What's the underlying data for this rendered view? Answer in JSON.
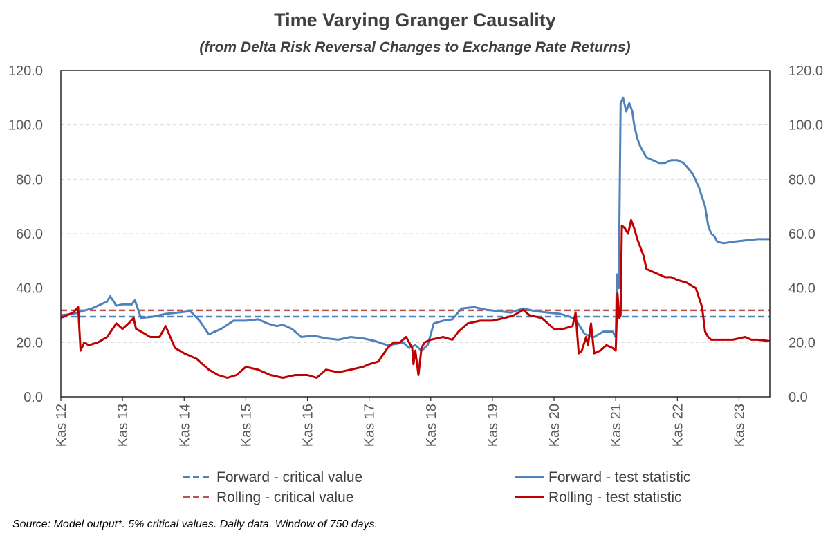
{
  "chart_data": {
    "type": "line",
    "title": "Time Varying Granger Causality",
    "subtitle": "(from Delta Risk Reversal Changes to Exchange Rate Returns)",
    "source_note": "Source: Model output*.  5% critical values. Daily data.  Window of 750 days.",
    "ylim": [
      0,
      120
    ],
    "y_ticks": [
      "0.0",
      "20.0",
      "40.0",
      "60.0",
      "80.0",
      "100.0",
      "120.0"
    ],
    "y_tick_values": [
      0,
      20,
      40,
      60,
      80,
      100,
      120
    ],
    "secondary_y_ticks": [
      "0.0",
      "20.0",
      "40.0",
      "60.0",
      "80.0",
      "100.0",
      "120.0"
    ],
    "x_range": [
      2012.0,
      2023.5
    ],
    "x_ticks": [
      "Kas 12",
      "Kas 13",
      "Kas 14",
      "Kas 15",
      "Kas 16",
      "Kas 17",
      "Kas 18",
      "Kas 19",
      "Kas 20",
      "Kas 21",
      "Kas 22",
      "Kas 23"
    ],
    "x_tick_values": [
      2012,
      2013,
      2014,
      2015,
      2016,
      2017,
      2018,
      2019,
      2020,
      2021,
      2022,
      2023
    ],
    "grid": "horizontal dashed",
    "legend_position": "bottom",
    "series": [
      {
        "name": "Forward - critical value",
        "color": "#4f81bd",
        "dash": true,
        "x": [
          2012.0,
          2023.5
        ],
        "y": [
          29.5,
          29.5
        ]
      },
      {
        "name": "Rolling - critical value",
        "color": "#c0504d",
        "dash": true,
        "x": [
          2012.0,
          2023.5
        ],
        "y": [
          31.8,
          31.8
        ]
      },
      {
        "name": "Forward - test statistic",
        "color": "#4f81bd",
        "dash": false,
        "x": [
          2012.0,
          2012.2,
          2012.35,
          2012.5,
          2012.65,
          2012.75,
          2012.8,
          2012.9,
          2013.0,
          2013.15,
          2013.2,
          2013.3,
          2013.5,
          2013.7,
          2013.9,
          2014.1,
          2014.25,
          2014.4,
          2014.6,
          2014.8,
          2015.0,
          2015.2,
          2015.35,
          2015.5,
          2015.6,
          2015.75,
          2015.9,
          2016.1,
          2016.3,
          2016.5,
          2016.7,
          2016.9,
          2017.1,
          2017.3,
          2017.45,
          2017.55,
          2017.65,
          2017.75,
          2017.85,
          2017.95,
          2018.05,
          2018.2,
          2018.35,
          2018.5,
          2018.7,
          2018.9,
          2019.1,
          2019.3,
          2019.5,
          2019.7,
          2019.9,
          2020.1,
          2020.25,
          2020.35,
          2020.5,
          2020.65,
          2020.8,
          2020.95,
          2021.0,
          2021.02,
          2021.05,
          2021.08,
          2021.12,
          2021.17,
          2021.22,
          2021.27,
          2021.3,
          2021.35,
          2021.4,
          2021.45,
          2021.5,
          2021.6,
          2021.7,
          2021.8,
          2021.9,
          2022.0,
          2022.1,
          2022.25,
          2022.35,
          2022.45,
          2022.5,
          2022.55,
          2022.6,
          2022.65,
          2022.75,
          2022.9,
          2023.1,
          2023.3,
          2023.5
        ],
        "y": [
          30,
          30.5,
          31.5,
          32.5,
          34,
          35,
          37,
          33.5,
          34,
          34,
          35.5,
          29,
          29.5,
          30.5,
          31,
          31.5,
          28,
          23,
          25,
          28,
          28,
          28.5,
          27,
          26,
          26.5,
          25,
          22,
          22.5,
          21.5,
          21,
          22,
          21.5,
          20.5,
          19,
          19.5,
          20,
          18,
          19,
          17,
          19,
          27,
          28,
          28.5,
          32.5,
          33,
          32,
          31.5,
          31,
          32.5,
          31.5,
          31,
          30.5,
          29.5,
          28.5,
          23,
          22,
          24,
          24,
          22,
          45,
          40,
          108,
          110,
          105,
          108,
          105,
          100,
          95,
          92,
          90,
          88,
          87,
          86,
          86,
          87,
          87,
          86,
          82,
          77,
          70,
          63,
          60,
          59,
          57,
          56.5,
          57,
          57.5,
          58,
          58
        ]
      },
      {
        "name": "Rolling - test statistic",
        "color": "#c00000",
        "dash": false,
        "x": [
          2012.0,
          2012.1,
          2012.2,
          2012.28,
          2012.32,
          2012.38,
          2012.45,
          2012.6,
          2012.75,
          2012.9,
          2013.0,
          2013.1,
          2013.18,
          2013.22,
          2013.3,
          2013.45,
          2013.6,
          2013.7,
          2013.85,
          2014.0,
          2014.2,
          2014.4,
          2014.55,
          2014.7,
          2014.85,
          2015.0,
          2015.2,
          2015.4,
          2015.6,
          2015.8,
          2016.0,
          2016.15,
          2016.3,
          2016.5,
          2016.7,
          2016.9,
          2017.0,
          2017.15,
          2017.3,
          2017.4,
          2017.5,
          2017.6,
          2017.7,
          2017.72,
          2017.75,
          2017.8,
          2017.85,
          2017.9,
          2018.0,
          2018.2,
          2018.35,
          2018.45,
          2018.6,
          2018.8,
          2019.0,
          2019.2,
          2019.35,
          2019.5,
          2019.6,
          2019.8,
          2020.0,
          2020.15,
          2020.3,
          2020.35,
          2020.4,
          2020.45,
          2020.52,
          2020.55,
          2020.6,
          2020.65,
          2020.75,
          2020.85,
          2020.95,
          2021.0,
          2021.03,
          2021.06,
          2021.08,
          2021.1,
          2021.15,
          2021.2,
          2021.25,
          2021.3,
          2021.35,
          2021.4,
          2021.45,
          2021.5,
          2021.6,
          2021.7,
          2021.8,
          2021.9,
          2022.0,
          2022.15,
          2022.3,
          2022.4,
          2022.45,
          2022.5,
          2022.55,
          2022.6,
          2022.7,
          2022.9,
          2023.1,
          2023.2,
          2023.3,
          2023.5
        ],
        "y": [
          29,
          30,
          31,
          33,
          17,
          20,
          19,
          20,
          22,
          27,
          25,
          27,
          29,
          25,
          24,
          22,
          22,
          26,
          18,
          16,
          14,
          10,
          8,
          7,
          8,
          11,
          10,
          8,
          7,
          8,
          8,
          7,
          10,
          9,
          10,
          11,
          12,
          13,
          18,
          20,
          20,
          22,
          18,
          12,
          17,
          8,
          18,
          20,
          21,
          22,
          21,
          24,
          27,
          28,
          28,
          29,
          30,
          32,
          30,
          29,
          25,
          25,
          26,
          31,
          16,
          17,
          22,
          19,
          27,
          16,
          17,
          19,
          18,
          17,
          38,
          29,
          30,
          63,
          62,
          60,
          65,
          62,
          58,
          55,
          52,
          47,
          46,
          45,
          44,
          44,
          43,
          42,
          40,
          33,
          24,
          22,
          21,
          21,
          21,
          21,
          22,
          21,
          21,
          20.5
        ]
      }
    ]
  }
}
